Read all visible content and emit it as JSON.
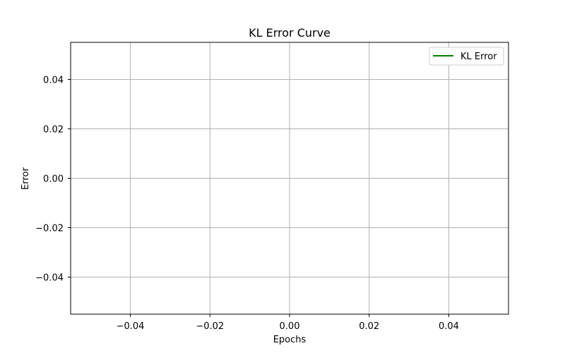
{
  "chart_data": {
    "type": "line",
    "title": "KL Error Curve",
    "xlabel": "Epochs",
    "ylabel": "Error",
    "xlim": [
      -0.055,
      0.055
    ],
    "ylim": [
      -0.055,
      0.055
    ],
    "xticks": [
      -0.04,
      -0.02,
      0.0,
      0.02,
      0.04
    ],
    "yticks": [
      -0.04,
      -0.02,
      0.0,
      0.02,
      0.04
    ],
    "xtick_labels": [
      "−0.04",
      "−0.02",
      "0.00",
      "0.02",
      "0.04"
    ],
    "ytick_labels": [
      "−0.04",
      "−0.02",
      "0.00",
      "0.02",
      "0.04"
    ],
    "grid": true,
    "legend_position": "top-right",
    "series": [
      {
        "name": "KL Error",
        "color": "#008000",
        "x": [],
        "y": []
      }
    ]
  }
}
